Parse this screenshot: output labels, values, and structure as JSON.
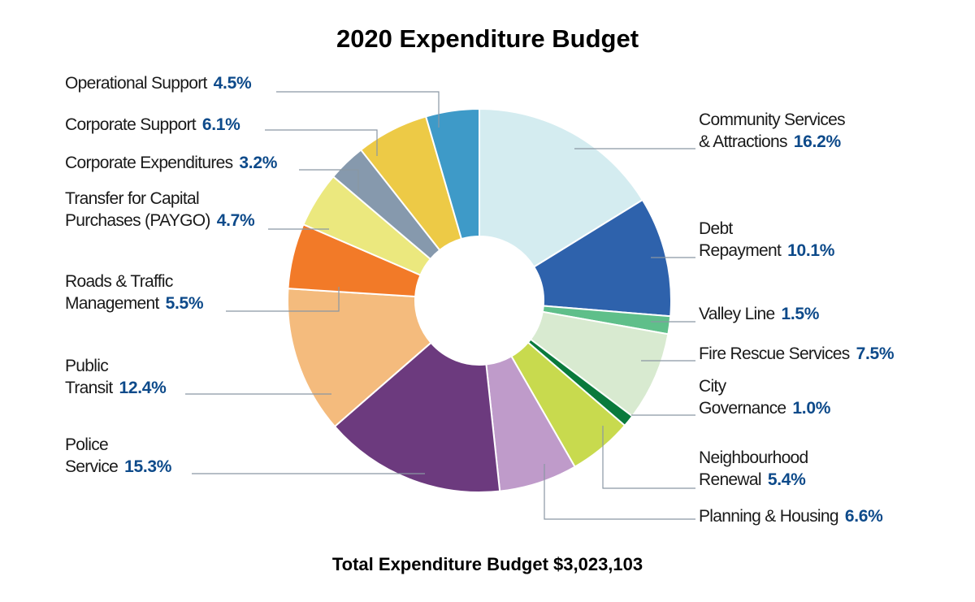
{
  "chart_data": {
    "type": "pie",
    "donut": true,
    "title": "2020 Expenditure Budget",
    "footer": "Total Expenditure Budget $3,023,103",
    "pct_color": "#0d4a8a",
    "slices": [
      {
        "label_lines": [
          "Community Services",
          "& Attractions"
        ],
        "pct_text": "16.2%",
        "value": 16.2,
        "color": "#d4ecf0"
      },
      {
        "label_lines": [
          "Debt",
          "Repayment"
        ],
        "pct_text": "10.1%",
        "value": 10.1,
        "color": "#2e62ac"
      },
      {
        "label_lines": [
          "Valley Line"
        ],
        "pct_text": "1.5%",
        "value": 1.5,
        "color": "#5fbf8a"
      },
      {
        "label_lines": [
          "Fire Rescue Services"
        ],
        "pct_text": "7.5%",
        "value": 7.5,
        "color": "#d8ead0"
      },
      {
        "label_lines": [
          "City",
          "Governance"
        ],
        "pct_text": "1.0%",
        "value": 1.0,
        "color": "#0a7a3c"
      },
      {
        "label_lines": [
          "Neighbourhood",
          "Renewal"
        ],
        "pct_text": "5.4%",
        "value": 5.4,
        "color": "#c8da4e"
      },
      {
        "label_lines": [
          "Planning & Housing"
        ],
        "pct_text": "6.6%",
        "value": 6.6,
        "color": "#bf9bca"
      },
      {
        "label_lines": [
          "Police",
          "Service"
        ],
        "pct_text": "15.3%",
        "value": 15.3,
        "color": "#6c3a7e"
      },
      {
        "label_lines": [
          "Public",
          "Transit"
        ],
        "pct_text": "12.4%",
        "value": 12.4,
        "color": "#f4bb7d"
      },
      {
        "label_lines": [
          "Roads & Traffic",
          "Management"
        ],
        "pct_text": "5.5%",
        "value": 5.5,
        "color": "#f27a28"
      },
      {
        "label_lines": [
          "Transfer for Capital",
          "Purchases (PAYGO)"
        ],
        "pct_text": "4.7%",
        "value": 4.7,
        "color": "#ebe87e"
      },
      {
        "label_lines": [
          "Corporate Expenditures"
        ],
        "pct_text": "3.2%",
        "value": 3.2,
        "color": "#8699ad"
      },
      {
        "label_lines": [
          "Corporate Support"
        ],
        "pct_text": "6.1%",
        "value": 6.1,
        "color": "#edca46"
      },
      {
        "label_lines": [
          "Operational Support"
        ],
        "pct_text": "4.5%",
        "value": 4.5,
        "color": "#3e9ac8"
      }
    ]
  }
}
